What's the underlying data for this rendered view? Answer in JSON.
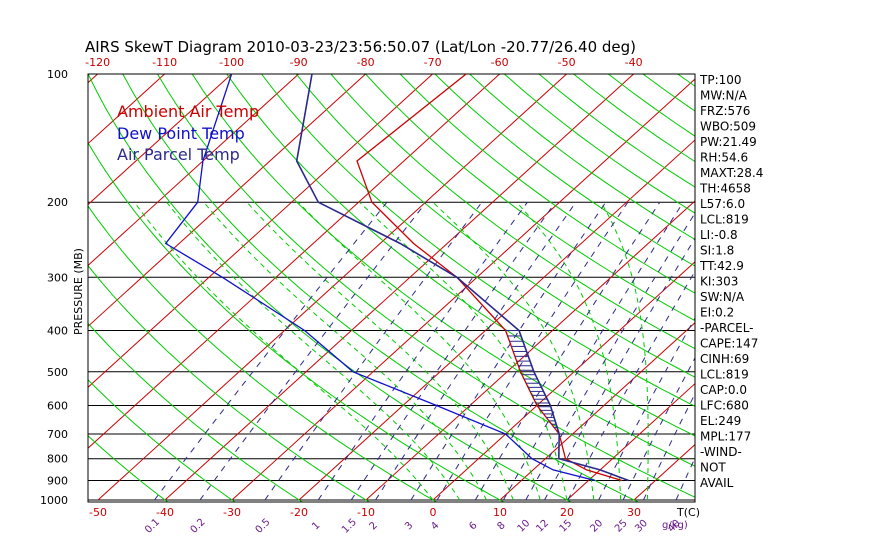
{
  "chart_data": {
    "type": "skewt",
    "title": "AIRS SkewT Diagram 2010-03-23/23:56:50.07 (Lat/Lon -20.77/26.40 deg)",
    "ylabel": "PRESSURE (MB)",
    "pressure_ticks": [
      "100",
      "200",
      "300",
      "400",
      "500",
      "600",
      "700",
      "800",
      "900",
      "1000"
    ],
    "pressure_values": [
      100,
      200,
      300,
      400,
      500,
      600,
      700,
      800,
      900,
      1000
    ],
    "top_temp_ticks": [
      "-120",
      "-110",
      "-100",
      "-90",
      "-80",
      "-70",
      "-60",
      "-50",
      "-40"
    ],
    "bottom_temp_ticks": [
      "-50",
      "-40",
      "-30",
      "-20",
      "-10",
      "0",
      "10",
      "20",
      "30"
    ],
    "bottom_axis_label": "T(C)",
    "mixing_ratio_ticks": [
      "0.1",
      "0.2",
      "0.5",
      "1",
      "1.5",
      "2",
      "3",
      "4",
      "6",
      "8",
      "10",
      "12",
      "15",
      "20",
      "25",
      "30",
      "40"
    ],
    "mixing_ratio_label": "g/kg)",
    "legend": [
      {
        "label": "Ambient Air Temp",
        "color": "#cc0000"
      },
      {
        "label": "Dew Point Temp",
        "color": "#1010cc"
      },
      {
        "label": "Air Parcel Temp",
        "color": "#2a2a8a"
      }
    ],
    "stats": [
      "TP:100",
      "MW:N/A",
      "FRZ:576",
      "WBO:509",
      "PW:21.49",
      "RH:54.6",
      "MAXT:28.4",
      "TH:4658",
      "L57:6.0",
      "LCL:819",
      "LI:-0.8",
      "SI:1.8",
      "TT:42.9",
      "KI:303",
      "SW:N/A",
      "EI:0.2",
      "-PARCEL-",
      "CAPE:147",
      "CINH:69",
      "LCL:819",
      "CAP:0.0",
      "LFC:680",
      "EL:249",
      "MPL:177",
      "-WIND-",
      "NOT",
      "AVAIL"
    ],
    "series": [
      {
        "name": "Ambient Air Temp",
        "points": [
          [
            100,
            -65
          ],
          [
            160,
            -67
          ],
          [
            200,
            -58
          ],
          [
            250,
            -45
          ],
          [
            300,
            -33
          ],
          [
            400,
            -17
          ],
          [
            500,
            -8
          ],
          [
            600,
            0
          ],
          [
            700,
            8
          ],
          [
            800,
            13
          ],
          [
            850,
            18
          ],
          [
            900,
            25
          ]
        ]
      },
      {
        "name": "Dew Point Temp",
        "points": [
          [
            100,
            -100
          ],
          [
            160,
            -90
          ],
          [
            200,
            -84
          ],
          [
            250,
            -82
          ],
          [
            300,
            -68
          ],
          [
            400,
            -47
          ],
          [
            500,
            -33
          ],
          [
            600,
            -15
          ],
          [
            700,
            0
          ],
          [
            800,
            8
          ],
          [
            850,
            13
          ],
          [
            900,
            21
          ]
        ]
      },
      {
        "name": "Air Parcel Temp",
        "points": [
          [
            100,
            -88
          ],
          [
            160,
            -76
          ],
          [
            200,
            -66
          ],
          [
            250,
            -47
          ],
          [
            300,
            -33
          ],
          [
            400,
            -15
          ],
          [
            500,
            -6
          ],
          [
            600,
            2
          ],
          [
            700,
            8
          ],
          [
            800,
            12
          ],
          [
            850,
            20
          ],
          [
            900,
            26
          ]
        ]
      }
    ],
    "colors": {
      "isotherm": "#cc0000",
      "adiabat": "#00cc00",
      "moist_adiabat": "#00cc00",
      "mixing_ratio": "#2a2a8a",
      "isobar": "#000000"
    }
  }
}
